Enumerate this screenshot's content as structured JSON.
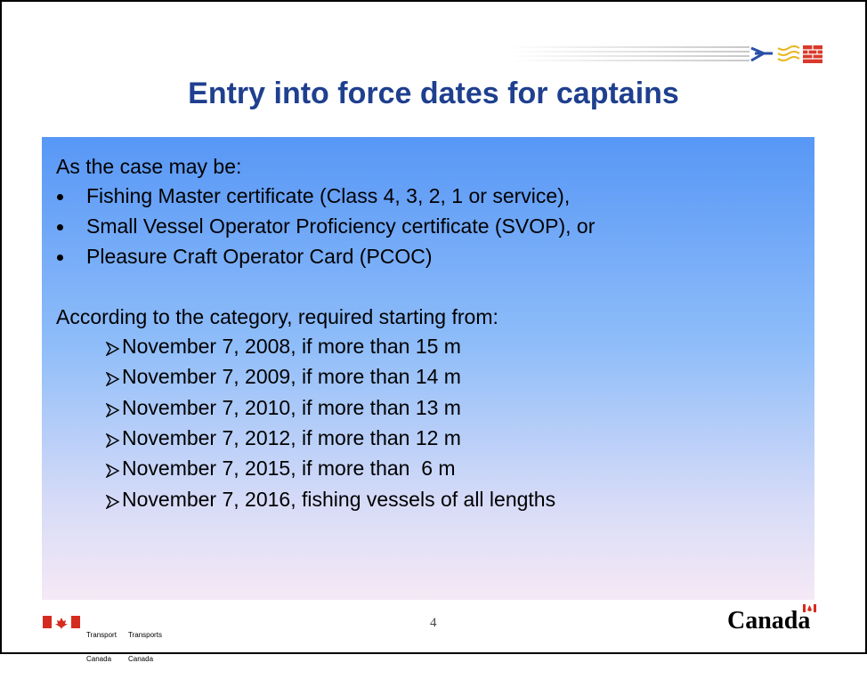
{
  "slide": {
    "title": "Entry into force dates for captains",
    "intro": "As the case may be:",
    "bullets": [
      "Fishing Master certificate (Class 4, 3, 2, 1 or service),",
      "Small Vessel Operator Proficiency certificate (SVOP), or",
      "Pleasure Craft Operator Card (PCOC)"
    ],
    "subheading": "According to the category, required starting from:",
    "dates": [
      "November 7, 2008, if more than 15 m",
      "November 7, 2009, if more than 14 m",
      "November 7, 2010, if more than 13 m",
      "November 7, 2012, if more than 12 m",
      "November 7, 2015, if more than  6 m",
      "November 7, 2016, fishing vessels of all lengths"
    ]
  },
  "footer": {
    "department_en": [
      "Transport",
      "Canada"
    ],
    "department_fr": [
      "Transports",
      "Canada"
    ],
    "page_number": "4",
    "wordmark": "Canada"
  }
}
